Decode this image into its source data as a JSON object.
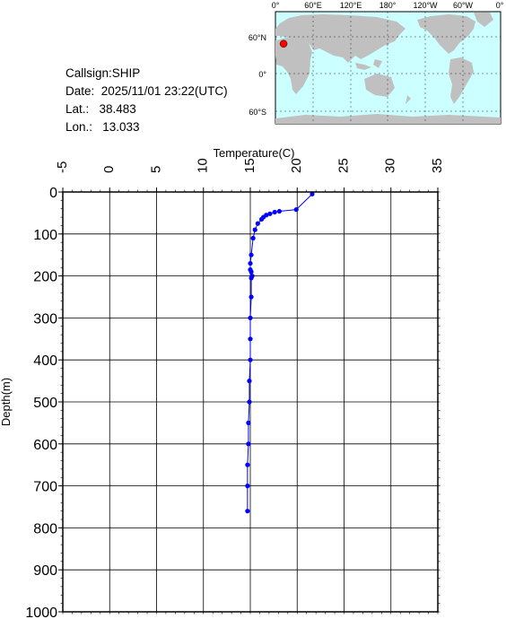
{
  "info": {
    "callsign": "Callsign:SHIP",
    "date": "Date:  2025/11/01 23:22(UTC)",
    "lat": "Lat.:   38.483",
    "lon": "Lon.:   13.033"
  },
  "map": {
    "lon_labels": [
      "0°",
      "60°E",
      "120°E",
      "180°",
      "120°W",
      "60°W",
      "0°"
    ],
    "lat_labels": [
      "60°N",
      "0°",
      "60°S"
    ],
    "ocean_color": "#ccffff",
    "land_color": "#c0c0c0",
    "marker_color": "#ff0000",
    "marker_lon": 13.033,
    "marker_lat": 38.483
  },
  "chart_data": {
    "type": "line",
    "title": "",
    "xlabel": "Temperature(C)",
    "ylabel": "Depth(m)",
    "xlim": [
      -5,
      35
    ],
    "ylim": [
      0,
      1000
    ],
    "y_inverted": true,
    "x_ticks": [
      "-5",
      "0",
      "5",
      "10",
      "15",
      "20",
      "25",
      "30",
      "35"
    ],
    "y_ticks": [
      "0",
      "100",
      "200",
      "300",
      "400",
      "500",
      "600",
      "700",
      "800",
      "900",
      "1000"
    ],
    "grid": true,
    "series_color": "#0000ff",
    "series": [
      {
        "temperature": [
          21.6,
          19.9,
          18.1,
          17.6,
          17.1,
          16.7,
          16.4,
          16.2,
          15.8,
          15.5,
          15.3,
          15.1,
          15.0,
          15.0,
          15.1,
          15.2,
          15.1,
          15.1,
          15.0,
          15.0,
          15.0,
          14.9,
          14.9,
          14.8,
          14.8,
          14.7,
          14.7,
          14.7
        ],
        "depth": [
          5,
          42,
          46,
          48,
          52,
          55,
          60,
          65,
          75,
          90,
          110,
          150,
          170,
          185,
          190,
          200,
          205,
          250,
          300,
          350,
          400,
          450,
          500,
          550,
          600,
          650,
          700,
          760
        ]
      }
    ]
  }
}
